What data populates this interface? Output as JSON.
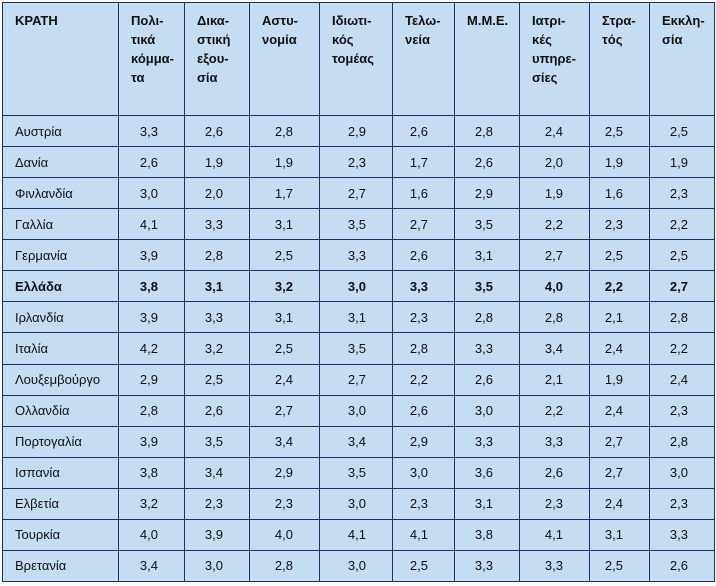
{
  "table": {
    "header": [
      "ΚΡΑΤΗ",
      "Πολι-\nτικά\nκόμμα-\nτα",
      "Δικα-\nστική\nεξου-\nσία",
      "Αστυ-\nνομία",
      "Ιδιωτι-\nκός\nτομέας",
      "Τελω-\nνεία",
      "Μ.Μ.Ε.",
      "Ιατρι-\nκές\nυπηρε-\nσίες",
      "Στρα-\nτός",
      "Εκκλη-\nσία"
    ],
    "rows": [
      [
        "Αυστρία",
        "3,3",
        "2,6",
        "2,8",
        "2,9",
        "2,6",
        "2,8",
        "2,4",
        "2,5",
        "2,5"
      ],
      [
        "Δανία",
        "2,6",
        "1,9",
        "1,9",
        "2,3",
        "1,7",
        "2,6",
        "2,0",
        "1,9",
        "1,9"
      ],
      [
        "Φινλανδία",
        "3,0",
        "2,0",
        "1,7",
        "2,7",
        "1,6",
        "2,9",
        "1,9",
        "1,6",
        "2,3"
      ],
      [
        "Γαλλία",
        "4,1",
        "3,3",
        "3,1",
        "3,5",
        "2,7",
        "3,5",
        "2,2",
        "2,3",
        "2,2"
      ],
      [
        "Γερμανία",
        "3,9",
        "2,8",
        "2,5",
        "3,3",
        "2,6",
        "3,1",
        "2,7",
        "2,5",
        "2,5"
      ],
      [
        "Ελλάδα",
        "3,8",
        "3,1",
        "3,2",
        "3,0",
        "3,3",
        "3,5",
        "4,0",
        "2,2",
        "2,7"
      ],
      [
        "Ιρλανδία",
        "3,9",
        "3,3",
        "3,1",
        "3,1",
        "2,3",
        "2,8",
        "2,8",
        "2,1",
        "2,8"
      ],
      [
        "Ιταλία",
        "4,2",
        "3,2",
        "2,5",
        "3,5",
        "2,8",
        "3,3",
        "3,4",
        "2,4",
        "2,2"
      ],
      [
        "Λουξεμβούργο",
        "2,9",
        "2,5",
        "2,4",
        "2,7",
        "2,2",
        "2,6",
        "2,1",
        "1,9",
        "2,4"
      ],
      [
        "Ολλανδία",
        "2,8",
        "2,6",
        "2,7",
        "3,0",
        "2,6",
        "3,0",
        "2,2",
        "2,4",
        "2,3"
      ],
      [
        "Πορτογαλία",
        "3,9",
        "3,5",
        "3,4",
        "3,4",
        "2,9",
        "3,3",
        "3,3",
        "2,7",
        "2,8"
      ],
      [
        "Ισπανία",
        "3,8",
        "3,4",
        "2,9",
        "3,5",
        "3,0",
        "3,6",
        "2,6",
        "2,7",
        "3,0"
      ],
      [
        "Ελβετία",
        "3,2",
        "2,3",
        "2,3",
        "3,0",
        "2,3",
        "3,1",
        "2,3",
        "2,4",
        "2,3"
      ],
      [
        "Τουρκία",
        "4,0",
        "3,9",
        "4,0",
        "4,1",
        "4,1",
        "3,8",
        "4,1",
        "3,1",
        "3,3"
      ],
      [
        "Βρετανία",
        "3,4",
        "3,0",
        "2,8",
        "3,0",
        "2,5",
        "3,3",
        "3,3",
        "2,5",
        "2,6"
      ]
    ]
  }
}
